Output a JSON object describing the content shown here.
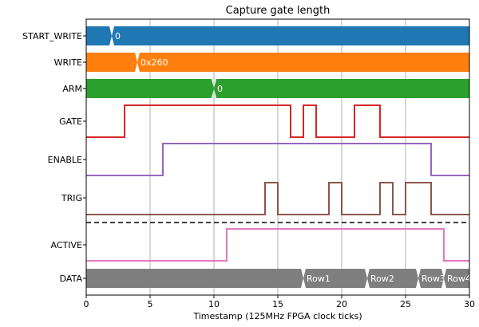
{
  "chart_data": {
    "type": "timing-diagram",
    "title": "Capture gate length",
    "xlabel": "Timestamp (125MHz FPGA clock ticks)",
    "xlim": [
      0,
      30
    ],
    "xticks": [
      0,
      5,
      10,
      15,
      20,
      25,
      30
    ],
    "grid_x": true,
    "signals": [
      {
        "name": "START_WRITE",
        "kind": "bus",
        "color": "#1f77b4",
        "segments": [
          {
            "from": 0,
            "to": 2,
            "label": ""
          },
          {
            "from": 2,
            "to": 30,
            "label": "0"
          }
        ]
      },
      {
        "name": "WRITE",
        "kind": "bus",
        "color": "#ff7f0e",
        "segments": [
          {
            "from": 0,
            "to": 4,
            "label": ""
          },
          {
            "from": 4,
            "to": 30,
            "label": "0x260"
          }
        ]
      },
      {
        "name": "ARM",
        "kind": "bus",
        "color": "#2ca02c",
        "segments": [
          {
            "from": 0,
            "to": 10,
            "label": ""
          },
          {
            "from": 10,
            "to": 30,
            "label": "0"
          }
        ]
      },
      {
        "name": "GATE",
        "kind": "digital",
        "color": "#d62728",
        "initial": 0,
        "transitions": [
          3,
          16,
          17,
          18,
          21,
          23
        ]
      },
      {
        "name": "ENABLE",
        "kind": "digital",
        "color": "#9467bd",
        "initial": 0,
        "transitions": [
          6,
          27
        ]
      },
      {
        "name": "TRIG",
        "kind": "digital",
        "color": "#8c564b",
        "initial": 0,
        "transitions": [
          14,
          15,
          19,
          20,
          23,
          24,
          25,
          27
        ]
      },
      {
        "name": "ACTIVE",
        "kind": "digital",
        "color": "#e377c2",
        "initial": 0,
        "transitions": [
          11,
          28
        ]
      },
      {
        "name": "DATA",
        "kind": "bus",
        "color": "#7f7f7f",
        "segments": [
          {
            "from": 0,
            "to": 17,
            "label": ""
          },
          {
            "from": 17,
            "to": 22,
            "label": "Row1"
          },
          {
            "from": 22,
            "to": 26,
            "label": "Row2"
          },
          {
            "from": 26,
            "to": 28,
            "label": "Row3"
          },
          {
            "from": 28,
            "to": 30,
            "label": "Row4"
          }
        ]
      }
    ],
    "divider_after": "TRIG"
  }
}
